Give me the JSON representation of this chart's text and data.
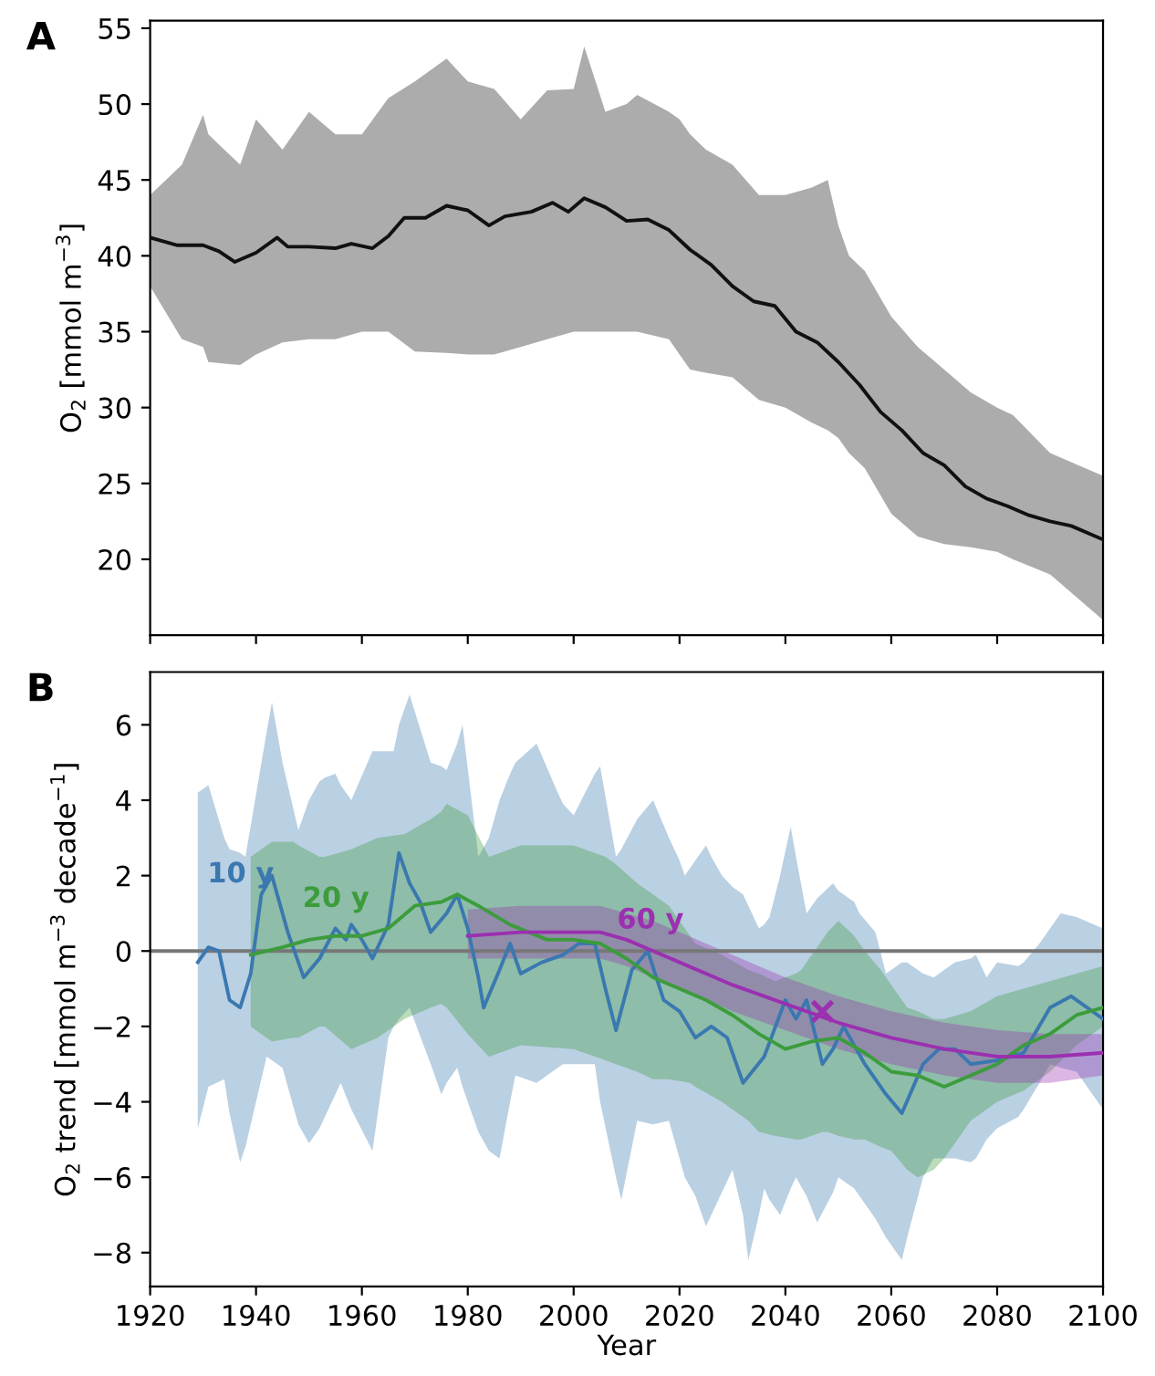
{
  "chart_data": [
    {
      "type": "line",
      "ylabel": "O$_{2}$ [mmol m$^{−3}$]",
      "annotations": [
        "A"
      ],
      "xlim": [
        1920,
        2100
      ],
      "ylim": [
        15,
        55.5
      ],
      "xticks": [
        1920,
        1940,
        1960,
        1980,
        2000,
        2020,
        2040,
        2060,
        2080,
        2100
      ],
      "yticks": [
        20,
        25,
        30,
        35,
        40,
        45,
        50,
        55
      ],
      "tick_labels": "y",
      "grid": false,
      "legend": false,
      "series": [
        {
          "color": "#111111",
          "x": [
            1920,
            1925,
            1926,
            1930,
            1931,
            1933,
            1936,
            1937,
            1940,
            1944,
            1945,
            1946,
            1950,
            1955,
            1958,
            1960,
            1962,
            1965,
            1968,
            1970,
            1972,
            1976,
            1980,
            1984,
            1985,
            1987,
            1990,
            1992,
            1995,
            1996,
            1999,
            2000,
            2002,
            2006,
            2010,
            2012,
            2014,
            2018,
            2020,
            2022,
            2025,
            2026,
            2030,
            2034,
            2035,
            2038,
            2040,
            2042,
            2045,
            2046,
            2048,
            2050,
            2052,
            2054,
            2055,
            2058,
            2060,
            2062,
            2065,
            2066,
            2070,
            2074,
            2075,
            2078,
            2080,
            2082,
            2083,
            2086,
            2090,
            2094,
            2100
          ],
          "values": [
            41.2,
            40.7,
            null,
            40.7,
            null,
            40.3,
            39.6,
            null,
            40.2,
            41.2,
            null,
            40.6,
            40.6,
            40.5,
            40.8,
            null,
            40.5,
            41.3,
            42.5,
            null,
            42.5,
            43.3,
            43.0,
            42.0,
            null,
            42.6,
            null,
            42.9,
            null,
            43.5,
            42.9,
            null,
            43.8,
            43.2,
            42.3,
            null,
            42.4,
            41.7,
            null,
            40.4,
            null,
            39.4,
            38.0,
            37.0,
            null,
            36.7,
            null,
            35.0,
            null,
            34.3,
            null,
            33.0,
            null,
            31.5,
            null,
            29.7,
            null,
            28.5,
            null,
            27.0,
            26.2,
            24.8,
            null,
            24.0,
            null,
            23.5,
            null,
            22.9,
            22.5,
            22.2,
            21.3
          ],
          "upper": [
            44,
            null,
            46,
            49.3,
            48,
            null,
            null,
            46,
            49,
            null,
            47,
            null,
            49.5,
            48,
            null,
            48,
            null,
            50.4,
            null,
            51.5,
            null,
            53,
            51.5,
            null,
            51,
            null,
            49,
            null,
            50.9,
            null,
            null,
            51,
            53.8,
            49.5,
            50,
            50.6,
            null,
            49.5,
            49,
            48,
            47,
            null,
            46,
            null,
            44,
            null,
            44,
            null,
            44.5,
            null,
            45,
            42,
            40,
            null,
            39,
            null,
            36,
            null,
            34,
            null,
            32.5,
            null,
            31,
            null,
            30,
            null,
            29.5,
            null,
            27,
            null,
            25.5
          ],
          "lower": [
            38,
            null,
            34.5,
            34,
            33,
            null,
            null,
            32.8,
            33.5,
            null,
            34.3,
            null,
            34.5,
            34.5,
            null,
            35,
            null,
            35,
            null,
            33.7,
            null,
            33.6,
            33.5,
            null,
            33.5,
            null,
            34,
            null,
            34.5,
            null,
            null,
            35,
            35,
            35,
            35,
            35,
            null,
            34.5,
            33.5,
            32.5,
            32.3,
            null,
            32,
            null,
            30.5,
            null,
            30,
            null,
            29,
            null,
            28.5,
            28,
            27,
            null,
            26,
            null,
            23,
            null,
            21.5,
            null,
            21,
            null,
            20.8,
            null,
            20.5,
            null,
            20,
            null,
            19,
            null,
            16
          ]
        }
      ]
    },
    {
      "type": "line",
      "xlabel": "Year",
      "ylabel": "O$_{2}$ trend [mmol m$^{−3}$ decade$^{−1}$]",
      "annotations": [
        "B"
      ],
      "xlim": [
        1920,
        2100
      ],
      "ylim": [
        -8.9,
        7.4
      ],
      "xticks": [
        1920,
        1940,
        1960,
        1980,
        2000,
        2020,
        2040,
        2060,
        2080,
        2100
      ],
      "yticks": [
        {
          "value": -8,
          "label": "−8"
        },
        {
          "value": -6,
          "label": "−6"
        },
        {
          "value": -4,
          "label": "−4"
        },
        {
          "value": -2,
          "label": "−2"
        },
        0,
        2,
        4,
        6
      ],
      "grid": false,
      "legend": false,
      "ref_lines": [
        {
          "axis": "y",
          "value": 0,
          "label": null,
          "color": "#777777"
        }
      ],
      "series": [
        {
          "name": "10 y",
          "color": "#3a78b0",
          "x": [
            1929,
            1931,
            1933,
            1934,
            1935,
            1937,
            1938,
            1939,
            1941,
            1942,
            1943,
            1945,
            1946,
            1948,
            1949,
            1950,
            1952,
            1953,
            1955,
            1956,
            1957,
            1958,
            1960,
            1962,
            1965,
            1966,
            1967,
            1969,
            1971,
            1973,
            1975,
            1976,
            1978,
            1979,
            1980,
            1982,
            1983,
            1984,
            1986,
            1988,
            1989,
            1990,
            1993,
            1994,
            1997,
            1998,
            2000,
            2001,
            2004,
            2005,
            2006,
            2008,
            2009,
            2011,
            2012,
            2014,
            2015,
            2017,
            2018,
            2020,
            2021,
            2023,
            2025,
            2026,
            2028,
            2029,
            2030,
            2032,
            2033,
            2035,
            2036,
            2037,
            2039,
            2040,
            2041,
            2042,
            2044,
            2046,
            2047,
            2049,
            2050,
            2051,
            2053,
            2054,
            2055,
            2057,
            2059,
            2062,
            2063,
            2066,
            2068,
            2069,
            2072,
            2075,
            2076,
            2078,
            2080,
            2084,
            2085,
            2088,
            2090,
            2092,
            2094,
            2095,
            2100
          ],
          "values": [
            -0.3,
            0.1,
            0.0,
            null,
            -1.3,
            -1.5,
            null,
            -0.6,
            1.5,
            null,
            2.0,
            null,
            0.5,
            null,
            -0.7,
            null,
            -0.2,
            null,
            0.6,
            null,
            0.3,
            0.7,
            0.3,
            -0.2,
            0.7,
            null,
            2.6,
            1.8,
            1.3,
            0.5,
            null,
            1.0,
            1.5,
            null,
            0.6,
            -0.7,
            -1.5,
            null,
            -0.5,
            0.2,
            null,
            -0.6,
            null,
            -0.3,
            null,
            -0.1,
            null,
            0.2,
            0.2,
            null,
            -1.0,
            -2.1,
            null,
            -0.5,
            null,
            0.0,
            null,
            -1.3,
            null,
            -1.6,
            null,
            -2.3,
            null,
            -2.0,
            null,
            -2.3,
            null,
            -3.5,
            null,
            null,
            -2.8,
            null,
            null,
            -1.3,
            null,
            -1.8,
            -1.3,
            null,
            -3.0,
            -2.6,
            null,
            -2.0,
            null,
            null,
            -3.0,
            null,
            -3.8,
            -4.3,
            null,
            -3.0,
            null,
            -2.6,
            -2.6,
            -3.0,
            null,
            null,
            -2.9,
            null,
            -2.7,
            null,
            -1.5,
            null,
            -1.2,
            null,
            -1.8
          ],
          "upper": [
            4.2,
            4.4,
            null,
            3.0,
            2.7,
            2.6,
            2.5,
            null,
            null,
            5.8,
            6.6,
            5.0,
            null,
            3.2,
            null,
            4.0,
            4.5,
            4.6,
            4.7,
            4.4,
            null,
            4.0,
            null,
            5.3,
            5.3,
            5.3,
            6.0,
            6.8,
            null,
            5.0,
            4.9,
            4.8,
            5.5,
            6.0,
            null,
            2.5,
            null,
            3.0,
            4.0,
            4.7,
            5.0,
            null,
            5.5,
            null,
            4.2,
            3.9,
            3.6,
            null,
            4.7,
            4.9,
            null,
            2.5,
            2.7,
            null,
            3.5,
            null,
            4.0,
            null,
            3.0,
            2.4,
            2.0,
            2.4,
            2.8,
            2.5,
            2.0,
            null,
            1.7,
            1.5,
            1.2,
            0.6,
            0.7,
            0.9,
            2.0,
            null,
            3.3,
            2.5,
            1.0,
            1.4,
            null,
            1.8,
            1.6,
            null,
            1.3,
            1.0,
            null,
            0.5,
            -0.6,
            -0.3,
            -0.3,
            -0.6,
            -0.7,
            null,
            -0.3,
            -0.2,
            -0.1,
            -0.7,
            -0.3,
            -0.4,
            -0.3,
            0.2,
            0.6,
            1.0,
            null,
            0.9,
            0.6
          ],
          "lower": [
            -4.7,
            -3.6,
            null,
            -3.4,
            -4.3,
            -5.6,
            -5.2,
            null,
            null,
            -2.8,
            -2.9,
            -3.1,
            null,
            -4.6,
            null,
            -5.1,
            -4.7,
            -4.4,
            -3.8,
            -3.5,
            null,
            -4.2,
            null,
            -5.3,
            -2.3,
            -2.0,
            -1.8,
            -1.5,
            null,
            -3.0,
            -3.8,
            -3.5,
            -3.1,
            -3.6,
            null,
            -4.8,
            null,
            -5.3,
            -5.5,
            -4.0,
            -3.3,
            null,
            -3.5,
            null,
            -3.1,
            -3.0,
            -3.0,
            null,
            -3.0,
            -4.0,
            null,
            -6.0,
            -6.6,
            null,
            -4.5,
            null,
            -4.6,
            null,
            -4.5,
            -5.5,
            -6.0,
            -6.5,
            -7.3,
            -7.0,
            -6.4,
            null,
            -5.8,
            -7.0,
            -8.2,
            -7.0,
            -6.3,
            -6.6,
            -7.0,
            null,
            -6.3,
            -6.0,
            -6.5,
            -7.2,
            null,
            -6.4,
            -6.0,
            null,
            -6.3,
            -6.5,
            null,
            -7.1,
            -7.6,
            -8.2,
            -7.6,
            -6.0,
            -5.5,
            null,
            -5.5,
            -5.6,
            -5.5,
            -5.0,
            -4.7,
            -4.4,
            -4.2,
            -3.5,
            -3.0,
            -3.1,
            null,
            -3.2,
            -4.2
          ]
        },
        {
          "name": "20 y",
          "color": "#3c9c3c",
          "x": [
            1939,
            1943,
            1945,
            1947,
            1948,
            1950,
            1952,
            1953,
            1955,
            1958,
            1960,
            1963,
            1965,
            1968,
            1970,
            1973,
            1975,
            1976,
            1978,
            1980,
            1982,
            1984,
            1988,
            1990,
            1995,
            2000,
            2005,
            2006,
            2008,
            2010,
            2012,
            2015,
            2018,
            2020,
            2022,
            2023,
            2025,
            2028,
            2030,
            2033,
            2035,
            2038,
            2040,
            2042,
            2043,
            2045,
            2047,
            2048,
            2050,
            2053,
            2055,
            2058,
            2060,
            2063,
            2065,
            2068,
            2070,
            2075,
            2080,
            2085,
            2090,
            2095,
            2100
          ],
          "values": [
            -0.1,
            null,
            0.1,
            null,
            null,
            0.3,
            null,
            null,
            0.4,
            null,
            0.4,
            null,
            0.6,
            null,
            1.2,
            null,
            1.3,
            null,
            1.5,
            null,
            1.2,
            null,
            0.7,
            null,
            0.3,
            0.3,
            0.2,
            null,
            null,
            -0.2,
            null,
            -0.7,
            null,
            -1.0,
            null,
            null,
            -1.3,
            null,
            -1.7,
            null,
            -2.2,
            null,
            -2.6,
            null,
            null,
            -2.4,
            null,
            null,
            -2.3,
            null,
            -2.7,
            null,
            -3.2,
            null,
            -3.3,
            null,
            -3.6,
            -3.3,
            -3.0,
            -2.5,
            -2.2,
            -1.7,
            -1.5
          ],
          "upper": [
            2.5,
            2.9,
            null,
            2.9,
            2.8,
            null,
            2.5,
            2.5,
            null,
            2.7,
            null,
            3.0,
            null,
            3.1,
            null,
            3.5,
            3.7,
            3.9,
            null,
            3.6,
            null,
            2.5,
            null,
            2.8,
            null,
            2.8,
            null,
            2.5,
            2.3,
            null,
            1.8,
            1.5,
            1.2,
            null,
            0.4,
            0.2,
            null,
            -0.1,
            null,
            -0.5,
            -0.6,
            -0.8,
            null,
            -0.6,
            -0.5,
            null,
            0.3,
            0.5,
            0.8,
            0.4,
            0.0,
            -0.5,
            -0.9,
            -1.5,
            -1.6,
            -1.8,
            -1.8,
            -1.6,
            -1.2,
            -1.0,
            -0.8,
            -0.6,
            -0.4
          ],
          "lower": [
            -2.0,
            -2.4,
            null,
            -2.3,
            -2.3,
            null,
            -2.0,
            -2.0,
            null,
            -2.6,
            null,
            -2.3,
            null,
            -1.8,
            null,
            -1.5,
            -1.4,
            -1.5,
            null,
            -2.2,
            null,
            -2.8,
            null,
            -2.5,
            null,
            -2.6,
            null,
            -2.9,
            -3.0,
            null,
            -3.2,
            -3.4,
            -3.4,
            null,
            -3.5,
            -3.6,
            null,
            -4.0,
            null,
            -4.5,
            -4.8,
            -4.9,
            null,
            -5.0,
            -5.0,
            null,
            -4.8,
            -4.8,
            -4.9,
            -5.0,
            -5.0,
            -5.2,
            -5.3,
            -5.8,
            -6.0,
            -5.8,
            -5.5,
            -4.5,
            -4.0,
            -3.7,
            -3.2,
            -2.5,
            -2.0
          ]
        },
        {
          "name": "60 y",
          "color": "#9b30b0",
          "x": [
            1980,
            1990,
            2000,
            2005,
            2010,
            2015,
            2020,
            2030,
            2040,
            2050,
            2060,
            2070,
            2080,
            2090,
            2100
          ],
          "values": [
            0.4,
            0.5,
            0.5,
            0.5,
            0.3,
            0.0,
            -0.3,
            -0.9,
            -1.4,
            -1.9,
            -2.3,
            -2.6,
            -2.8,
            -2.8,
            -2.7
          ],
          "upper": [
            1.1,
            1.2,
            1.2,
            1.2,
            1.0,
            0.8,
            0.5,
            -0.1,
            -0.7,
            -1.2,
            -1.6,
            -1.9,
            -2.1,
            -2.2,
            -2.2
          ],
          "lower": [
            -0.2,
            -0.2,
            -0.2,
            -0.2,
            -0.4,
            -0.7,
            -1.0,
            -1.6,
            -2.1,
            -2.6,
            -3.0,
            -3.3,
            -3.5,
            -3.5,
            -3.3
          ]
        },
        {
          "type": "scatter",
          "color": "#9b30b0",
          "marker": "cross",
          "x": [
            2047
          ],
          "values": [
            -1.6
          ]
        }
      ]
    }
  ]
}
